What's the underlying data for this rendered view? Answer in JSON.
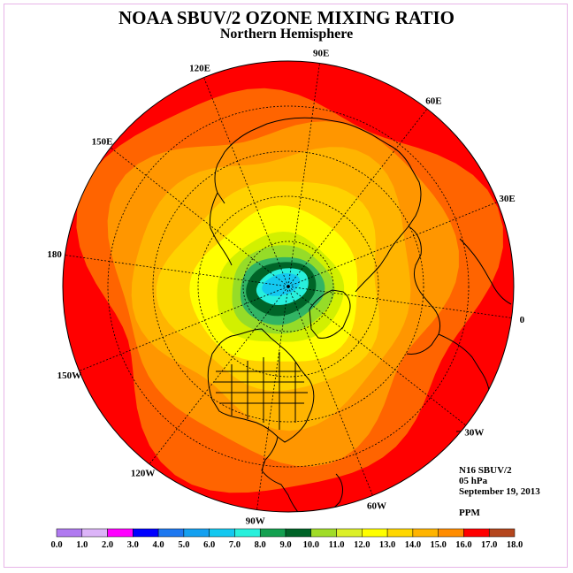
{
  "title": "NOAA SBUV/2 OZONE MIXING RATIO",
  "subtitle": "Northern Hemisphere",
  "info": {
    "instrument": "N16 SBUV/2",
    "level": "05 hPa",
    "date": "September 19, 2013",
    "units": "PPM"
  },
  "longitude_labels": [
    "90E",
    "60E",
    "30E",
    "0",
    "30W",
    "60W",
    "90W",
    "120W",
    "150W",
    "180",
    "150E",
    "120E"
  ],
  "colors": {
    "ocean_fill": "#ff0000",
    "coast": "#000000",
    "grid": "#000000",
    "frame": "#e8b4e8"
  },
  "chart_data": {
    "type": "heatmap",
    "projection": "north-polar-stereographic",
    "legend_placement": "bottom",
    "colorbar": {
      "tick_labels": [
        "0.0",
        "1.0",
        "2.0",
        "3.0",
        "4.0",
        "5.0",
        "6.0",
        "7.0",
        "8.0",
        "9.0",
        "10.0",
        "11.0",
        "12.0",
        "13.0",
        "14.0",
        "15.0",
        "16.0",
        "17.0",
        "18.0"
      ],
      "colors": [
        "#b07af0",
        "#dcb4f8",
        "#ff00ff",
        "#0000ff",
        "#1e78f0",
        "#14a0f0",
        "#14c8f0",
        "#28f0dc",
        "#14a050",
        "#006428",
        "#a0dc28",
        "#dcf028",
        "#ffff00",
        "#ffd700",
        "#ffb400",
        "#ff8c00",
        "#ff0000",
        "#b4461e"
      ]
    },
    "contour_bands": [
      {
        "min": 16.0,
        "max": 17.0,
        "color": "#ff0000"
      },
      {
        "min": 15.0,
        "max": 16.0,
        "color": "#ff6400"
      },
      {
        "min": 14.0,
        "max": 15.0,
        "color": "#ff9600"
      },
      {
        "min": 13.0,
        "max": 14.0,
        "color": "#ffb400"
      },
      {
        "min": 12.0,
        "max": 13.0,
        "color": "#ffd200"
      },
      {
        "min": 11.0,
        "max": 12.0,
        "color": "#ffff00"
      },
      {
        "min": 10.0,
        "max": 11.0,
        "color": "#d2f000"
      },
      {
        "min": 9.0,
        "max": 10.0,
        "color": "#96dc28"
      },
      {
        "min": 8.0,
        "max": 9.0,
        "color": "#32b464"
      },
      {
        "min": 7.0,
        "max": 8.0,
        "color": "#006428"
      },
      {
        "min": 6.0,
        "max": 7.0,
        "color": "#28f0dc"
      },
      {
        "min": 5.0,
        "max": 6.0,
        "color": "#14c8f0"
      }
    ]
  }
}
